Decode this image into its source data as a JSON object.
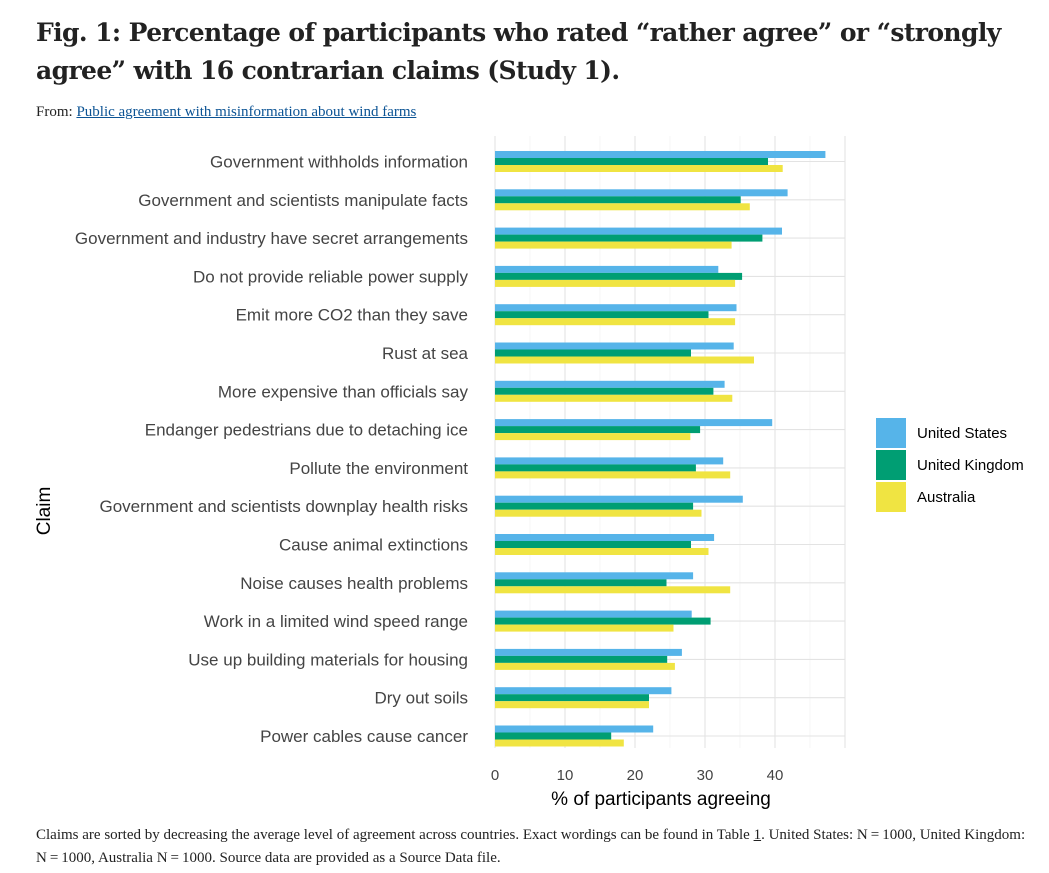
{
  "figure": {
    "title": "Fig. 1: Percentage of participants who rated “rather agree” or “strongly agree” with 16 contrarian claims (Study 1).",
    "from_label": "From:",
    "source_link": "Public agreement with misinformation about wind farms",
    "caption_part1": "Claims are sorted by decreasing the average level of agreement across countries. Exact wordings can be found in Table ",
    "caption_table_link": "1",
    "caption_part2": ". United States: N = 1000, United Kingdom: N = 1000, Australia N = 1000. Source data are provided as a Source Data file."
  },
  "chart_data": {
    "type": "bar",
    "orientation": "horizontal",
    "xlabel": "% of participants agreeing",
    "ylabel": "Claim",
    "xlim": [
      0,
      50
    ],
    "xticks": [
      0,
      10,
      20,
      30,
      40
    ],
    "grid": true,
    "legend_position": "right",
    "categories": [
      "Government withholds information",
      "Government and scientists manipulate facts",
      "Government and industry have secret arrangements",
      "Do not provide reliable power supply",
      "Emit more CO2 than they save",
      "Rust at sea",
      "More expensive than officials say",
      "Endanger pedestrians due to detaching ice",
      "Pollute the environment",
      "Government and scientists downplay health risks",
      "Cause animal extinctions",
      "Noise causes health problems",
      "Work in a limited wind speed range",
      "Use up building materials for housing",
      "Dry out soils",
      "Power cables cause cancer"
    ],
    "series": [
      {
        "name": "United States",
        "color": "#56b4e9",
        "values": [
          47.2,
          41.8,
          41.0,
          31.9,
          34.5,
          34.1,
          32.8,
          39.6,
          32.6,
          35.4,
          31.3,
          28.3,
          28.1,
          26.7,
          25.2,
          22.6
        ]
      },
      {
        "name": "United Kingdom",
        "color": "#009e73",
        "values": [
          39.0,
          35.1,
          38.2,
          35.3,
          30.5,
          28.0,
          31.2,
          29.3,
          28.7,
          28.3,
          28.0,
          24.5,
          30.8,
          24.6,
          22.0,
          16.6
        ]
      },
      {
        "name": "Australia",
        "color": "#f0e442",
        "values": [
          41.1,
          36.4,
          33.8,
          34.3,
          34.3,
          37.0,
          33.9,
          27.9,
          33.6,
          29.5,
          30.5,
          33.6,
          25.5,
          25.7,
          22.0,
          18.4
        ]
      }
    ]
  }
}
